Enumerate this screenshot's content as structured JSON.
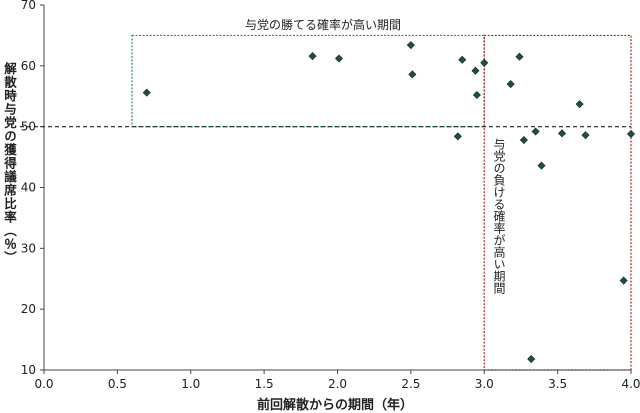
{
  "chart_data": {
    "type": "scatter",
    "xlabel": "前回解散からの期間（年）",
    "ylabel": "解散時与党の獲得議席比率（％）",
    "xlim": [
      0.0,
      4.0
    ],
    "ylim": [
      10,
      70
    ],
    "xticks": [
      "0.0",
      "0.5",
      "1.0",
      "1.5",
      "2.0",
      "2.5",
      "3.0",
      "3.5",
      "4.0"
    ],
    "yticks": [
      "10",
      "20",
      "30",
      "40",
      "50",
      "60",
      "70"
    ],
    "grid": false,
    "reference_line_y": 50,
    "marker_color": "#1f4e44",
    "annotations": [
      {
        "text": "与党の勝てる確率が高い期間",
        "color": "#2e8b57",
        "x_range": [
          0.6,
          3.0
        ],
        "y_range": [
          50,
          65
        ]
      },
      {
        "text": "与党の負ける確率が高い期間",
        "color": "#b22222",
        "x_range": [
          3.0,
          4.0
        ],
        "y_range": [
          10,
          65
        ]
      }
    ],
    "points": [
      {
        "x": 0.7,
        "y": 55.6
      },
      {
        "x": 1.83,
        "y": 61.6
      },
      {
        "x": 2.01,
        "y": 61.2
      },
      {
        "x": 2.5,
        "y": 63.4
      },
      {
        "x": 2.51,
        "y": 58.6
      },
      {
        "x": 2.82,
        "y": 48.4
      },
      {
        "x": 2.85,
        "y": 61.0
      },
      {
        "x": 2.94,
        "y": 59.2
      },
      {
        "x": 2.95,
        "y": 55.2
      },
      {
        "x": 3.0,
        "y": 60.5
      },
      {
        "x": 3.18,
        "y": 57.0
      },
      {
        "x": 3.24,
        "y": 61.5
      },
      {
        "x": 3.27,
        "y": 47.8
      },
      {
        "x": 3.32,
        "y": 11.8
      },
      {
        "x": 3.35,
        "y": 49.2
      },
      {
        "x": 3.39,
        "y": 43.6
      },
      {
        "x": 3.53,
        "y": 48.9
      },
      {
        "x": 3.65,
        "y": 53.7
      },
      {
        "x": 3.69,
        "y": 48.6
      },
      {
        "x": 3.95,
        "y": 24.7
      },
      {
        "x": 4.0,
        "y": 48.8
      }
    ]
  }
}
